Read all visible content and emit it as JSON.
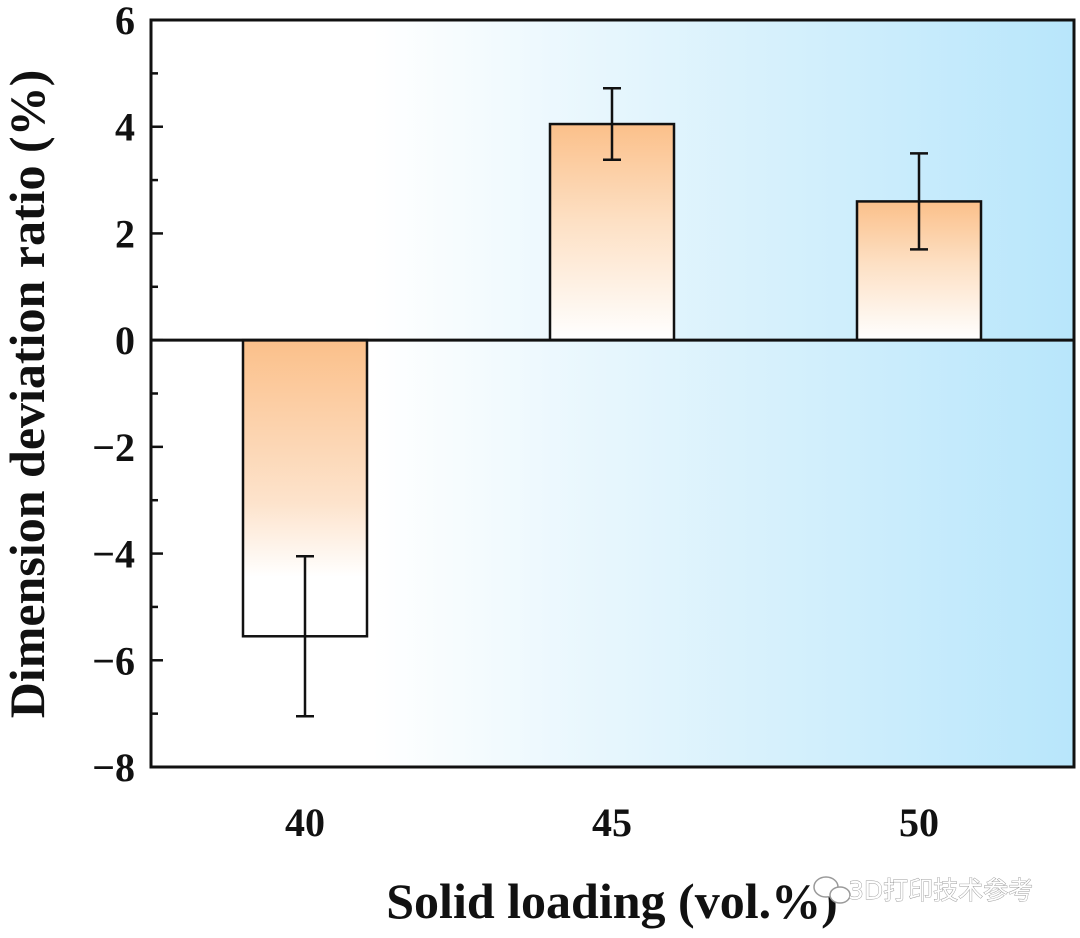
{
  "chart_data": {
    "type": "bar",
    "categories": [
      "40",
      "45",
      "50"
    ],
    "values": [
      -5.55,
      4.05,
      2.6
    ],
    "errors": [
      1.5,
      0.67,
      0.9
    ],
    "ylim": [
      -8,
      6
    ],
    "yticks": [
      6,
      4,
      2,
      0,
      -2,
      -4,
      -6,
      -8
    ],
    "ytick_labels": [
      "6",
      "4",
      "2",
      "0",
      "−2",
      "−4",
      "−6",
      "−8"
    ],
    "xlabel": "Solid loading (vol.%)",
    "ylabel": "Dimension deviation ratio (%)",
    "grid": false,
    "background": "white-to-light-blue gradient",
    "bar_gradient": [
      "#fbc08a",
      "#ffffff"
    ],
    "colors": {
      "bar_top": "#fbc08a",
      "bar_bottom": "#ffffff",
      "bg_right": "#b8e6fb",
      "outline": "#111111"
    }
  },
  "watermark": {
    "icon": "wechat-icon",
    "text": "3D打印技术参考"
  }
}
